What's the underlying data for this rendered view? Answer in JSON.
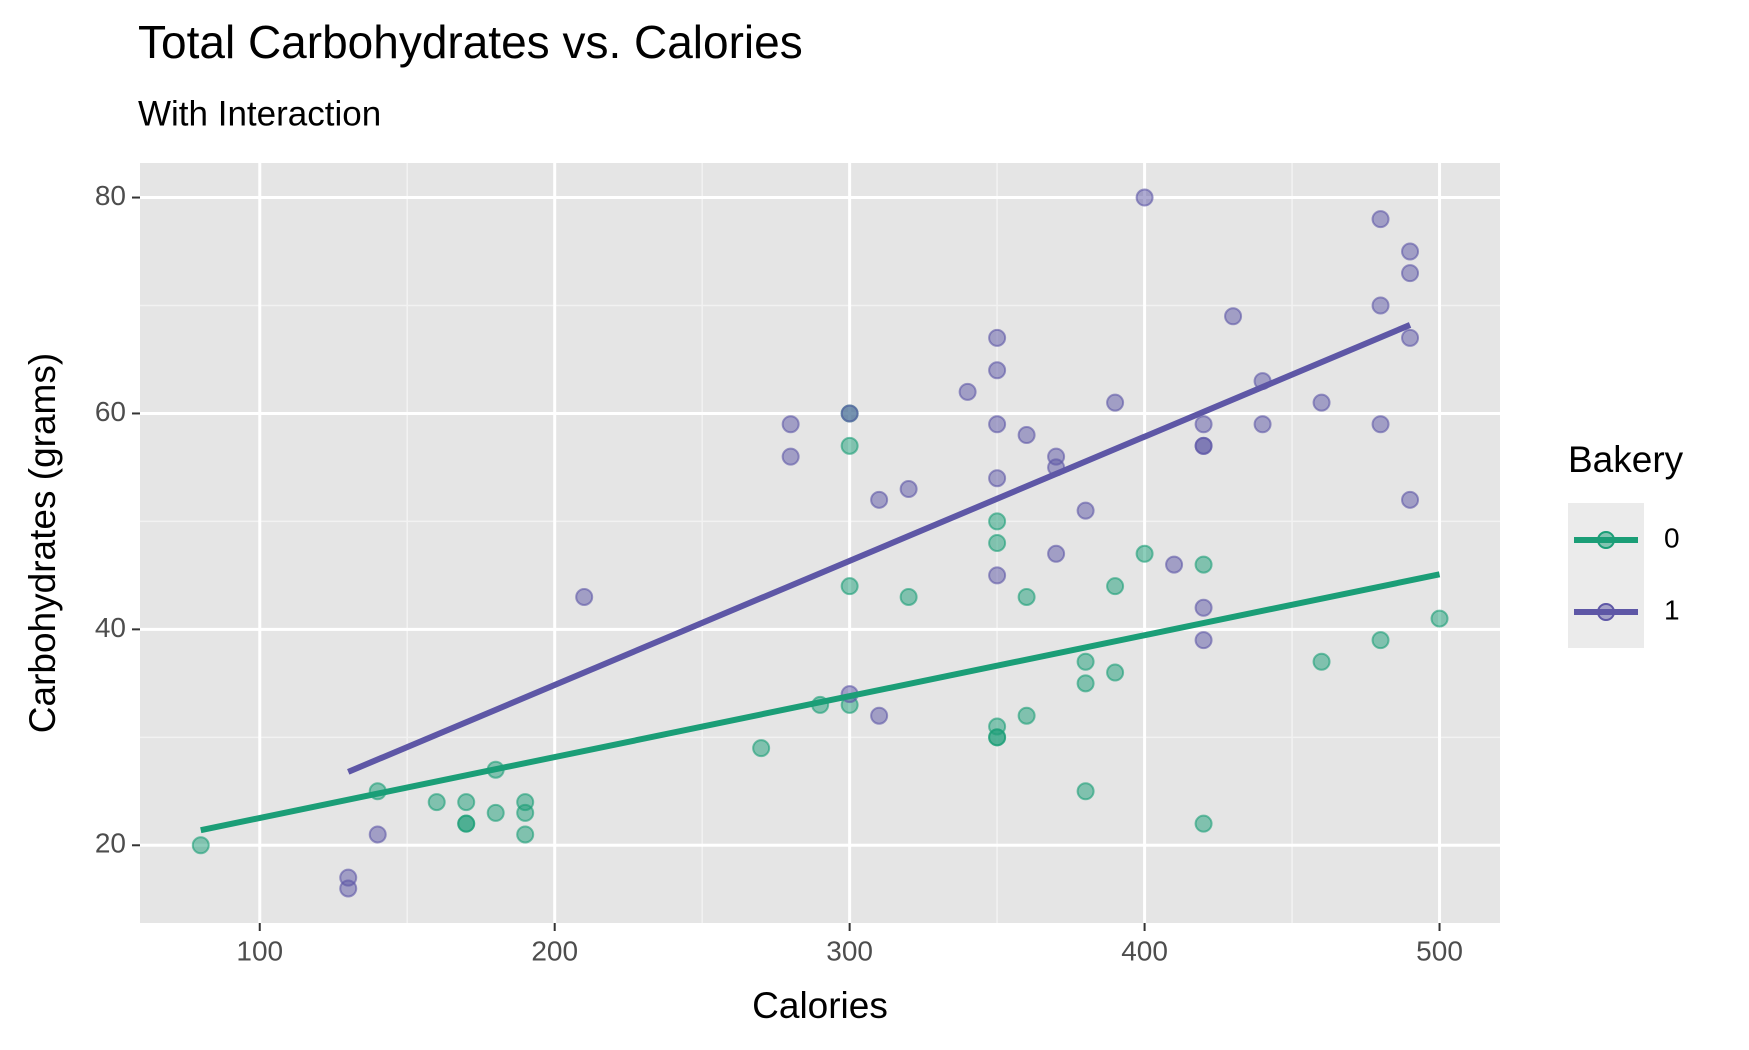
{
  "chart_data": {
    "type": "scatter",
    "title": "Total Carbohydrates vs. Calories",
    "subtitle": "With Interaction",
    "x_label": "Calories",
    "y_label": "Carbohydrates (grams)",
    "legend_title": "Bakery",
    "legend": "right",
    "grid": true,
    "xlim": [
      59.4,
      520.5
    ],
    "ylim": [
      12.8,
      83.2
    ],
    "xticks": [
      100,
      200,
      300,
      400,
      500
    ],
    "yticks": [
      20,
      40,
      60,
      80
    ],
    "x_minor_ticks": [
      150,
      250,
      350,
      450
    ],
    "y_minor_ticks": [
      30,
      50,
      70
    ],
    "series": [
      {
        "name": "0",
        "color": "#1b9e77",
        "x": [
          80,
          140,
          160,
          170,
          170,
          170,
          180,
          180,
          190,
          190,
          190,
          270,
          290,
          300,
          300,
          300,
          300,
          320,
          350,
          350,
          350,
          350,
          350,
          360,
          360,
          380,
          380,
          380,
          390,
          390,
          400,
          420,
          420,
          460,
          480,
          500
        ],
        "values": [
          20,
          25,
          24,
          24,
          22,
          22,
          27,
          23,
          24,
          23,
          21,
          29,
          33,
          33,
          60,
          57,
          44,
          43,
          50,
          48,
          31,
          30,
          30,
          43,
          32,
          37,
          35,
          25,
          44,
          36,
          47,
          46,
          22,
          37,
          39,
          41
        ],
        "fit_x": [
          80,
          500
        ],
        "fit_values": [
          21.4,
          45.1
        ]
      },
      {
        "name": "1",
        "color": "#5e57a6",
        "x": [
          130,
          130,
          140,
          210,
          280,
          280,
          300,
          300,
          310,
          310,
          320,
          340,
          350,
          350,
          350,
          350,
          350,
          360,
          370,
          370,
          370,
          380,
          390,
          400,
          410,
          420,
          420,
          420,
          420,
          420,
          430,
          440,
          440,
          460,
          480,
          480,
          480,
          490,
          490,
          490,
          490
        ],
        "values": [
          17,
          16,
          21,
          43,
          59,
          56,
          60,
          34,
          52,
          32,
          53,
          62,
          67,
          64,
          59,
          54,
          45,
          58,
          56,
          55,
          47,
          51,
          61,
          80,
          46,
          59,
          57,
          57,
          42,
          39,
          69,
          63,
          59,
          61,
          78,
          70,
          59,
          75,
          73,
          67,
          52
        ],
        "fit_x": [
          130,
          490
        ],
        "fit_values": [
          26.8,
          68.2
        ]
      }
    ]
  }
}
